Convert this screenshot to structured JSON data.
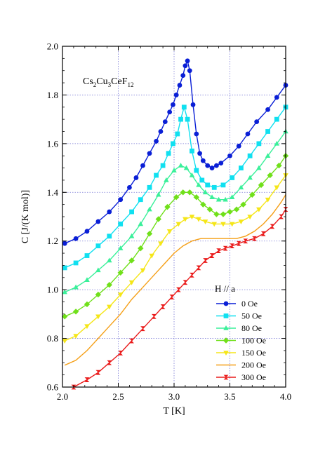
{
  "chart_data": {
    "type": "line",
    "title": "",
    "xlabel": "T [K]",
    "ylabel": "C [J/(K mol)]",
    "xlim": [
      2.0,
      4.0
    ],
    "ylim": [
      0.6,
      2.0
    ],
    "xticks": [
      2.0,
      2.5,
      3.0,
      3.5,
      4.0
    ],
    "xtick_labels": [
      "2.0",
      "2.5",
      "3.0",
      "3.5",
      "4.0"
    ],
    "yticks": [
      0.6,
      0.8,
      1.0,
      1.2,
      1.4,
      1.6,
      1.8,
      2.0
    ],
    "ytick_labels": [
      "0.6",
      "0.8",
      "1.0",
      "1.2",
      "1.4",
      "1.6",
      "1.8",
      "2.0"
    ],
    "grid": true,
    "grid_style": "dotted",
    "legend_position": "lower-right",
    "legend_title": "H // a",
    "annotation": {
      "base1": "Cs",
      "sub1": "2",
      "base2": "Cu",
      "sub2": "3",
      "base3": "CeF",
      "sub3": "12"
    },
    "series": [
      {
        "name": "0 Oe",
        "color": "#0a1fd6",
        "marker": "circle",
        "x": [
          2.02,
          2.12,
          2.22,
          2.32,
          2.42,
          2.52,
          2.6,
          2.66,
          2.72,
          2.78,
          2.84,
          2.88,
          2.92,
          2.96,
          2.99,
          3.02,
          3.05,
          3.08,
          3.1,
          3.12,
          3.14,
          3.17,
          3.2,
          3.23,
          3.26,
          3.3,
          3.34,
          3.38,
          3.42,
          3.5,
          3.58,
          3.66,
          3.74,
          3.84,
          3.92,
          4.0
        ],
        "y": [
          1.19,
          1.21,
          1.24,
          1.28,
          1.32,
          1.37,
          1.42,
          1.46,
          1.51,
          1.56,
          1.61,
          1.65,
          1.69,
          1.73,
          1.76,
          1.8,
          1.84,
          1.88,
          1.92,
          1.94,
          1.9,
          1.76,
          1.64,
          1.56,
          1.53,
          1.51,
          1.5,
          1.51,
          1.52,
          1.55,
          1.59,
          1.64,
          1.69,
          1.74,
          1.79,
          1.84
        ]
      },
      {
        "name": "50 Oe",
        "color": "#10e0f0",
        "marker": "square",
        "x": [
          2.02,
          2.12,
          2.22,
          2.32,
          2.42,
          2.52,
          2.62,
          2.7,
          2.78,
          2.84,
          2.9,
          2.95,
          2.99,
          3.03,
          3.06,
          3.09,
          3.12,
          3.16,
          3.2,
          3.25,
          3.3,
          3.36,
          3.44,
          3.52,
          3.6,
          3.68,
          3.76,
          3.84,
          3.92,
          4.0
        ],
        "y": [
          1.09,
          1.11,
          1.14,
          1.18,
          1.22,
          1.27,
          1.32,
          1.37,
          1.42,
          1.47,
          1.51,
          1.56,
          1.6,
          1.64,
          1.7,
          1.75,
          1.7,
          1.57,
          1.49,
          1.45,
          1.43,
          1.42,
          1.43,
          1.46,
          1.5,
          1.55,
          1.6,
          1.65,
          1.7,
          1.75
        ]
      },
      {
        "name": "80 Oe",
        "color": "#3af09a",
        "marker": "triangle-up",
        "x": [
          2.02,
          2.12,
          2.22,
          2.32,
          2.42,
          2.52,
          2.62,
          2.7,
          2.78,
          2.86,
          2.93,
          3.0,
          3.06,
          3.11,
          3.16,
          3.22,
          3.28,
          3.34,
          3.4,
          3.46,
          3.52,
          3.6,
          3.68,
          3.76,
          3.84,
          3.92,
          4.0
        ],
        "y": [
          0.99,
          1.01,
          1.04,
          1.08,
          1.12,
          1.17,
          1.22,
          1.27,
          1.33,
          1.39,
          1.45,
          1.49,
          1.51,
          1.5,
          1.47,
          1.43,
          1.4,
          1.38,
          1.37,
          1.37,
          1.38,
          1.42,
          1.46,
          1.5,
          1.55,
          1.6,
          1.65
        ]
      },
      {
        "name": "100 Oe",
        "color": "#70e01a",
        "marker": "diamond",
        "x": [
          2.02,
          2.12,
          2.22,
          2.32,
          2.42,
          2.52,
          2.62,
          2.7,
          2.78,
          2.86,
          2.94,
          3.02,
          3.08,
          3.14,
          3.2,
          3.26,
          3.32,
          3.38,
          3.44,
          3.5,
          3.56,
          3.62,
          3.7,
          3.78,
          3.86,
          3.94,
          4.0
        ],
        "y": [
          0.89,
          0.91,
          0.94,
          0.98,
          1.02,
          1.07,
          1.12,
          1.17,
          1.23,
          1.29,
          1.34,
          1.38,
          1.4,
          1.4,
          1.38,
          1.35,
          1.33,
          1.31,
          1.31,
          1.32,
          1.33,
          1.35,
          1.39,
          1.43,
          1.47,
          1.51,
          1.55
        ]
      },
      {
        "name": "150 Oe",
        "color": "#f5e618",
        "marker": "triangle-down",
        "x": [
          2.02,
          2.12,
          2.22,
          2.32,
          2.42,
          2.52,
          2.62,
          2.72,
          2.8,
          2.88,
          2.96,
          3.04,
          3.1,
          3.16,
          3.22,
          3.28,
          3.36,
          3.44,
          3.52,
          3.6,
          3.68,
          3.76,
          3.84,
          3.92,
          4.0
        ],
        "y": [
          0.79,
          0.81,
          0.85,
          0.89,
          0.93,
          0.98,
          1.03,
          1.08,
          1.14,
          1.19,
          1.24,
          1.27,
          1.29,
          1.3,
          1.29,
          1.28,
          1.27,
          1.27,
          1.27,
          1.28,
          1.3,
          1.33,
          1.37,
          1.42,
          1.47
        ]
      },
      {
        "name": "200 Oe",
        "color": "#f5a018",
        "marker": "bowtie",
        "x": [
          2.02,
          2.12,
          2.22,
          2.32,
          2.42,
          2.52,
          2.62,
          2.72,
          2.82,
          2.92,
          3.0,
          3.08,
          3.16,
          3.24,
          3.32,
          3.4,
          3.48,
          3.56,
          3.64,
          3.72,
          3.8,
          3.88,
          3.96,
          4.0
        ],
        "y": [
          0.69,
          0.71,
          0.75,
          0.8,
          0.85,
          0.9,
          0.96,
          1.01,
          1.06,
          1.11,
          1.15,
          1.18,
          1.2,
          1.21,
          1.21,
          1.21,
          1.21,
          1.21,
          1.22,
          1.24,
          1.27,
          1.31,
          1.36,
          1.39
        ]
      },
      {
        "name": "300 Oe",
        "color": "#ea1c1c",
        "marker": "hourglass",
        "x": [
          2.1,
          2.22,
          2.32,
          2.42,
          2.52,
          2.62,
          2.72,
          2.82,
          2.9,
          2.98,
          3.04,
          3.1,
          3.16,
          3.22,
          3.28,
          3.34,
          3.4,
          3.46,
          3.52,
          3.58,
          3.64,
          3.72,
          3.8,
          3.88,
          3.96,
          4.0
        ],
        "y": [
          0.6,
          0.63,
          0.66,
          0.7,
          0.74,
          0.79,
          0.84,
          0.89,
          0.93,
          0.97,
          1.0,
          1.03,
          1.06,
          1.09,
          1.12,
          1.14,
          1.16,
          1.17,
          1.18,
          1.19,
          1.2,
          1.21,
          1.23,
          1.26,
          1.3,
          1.33
        ]
      }
    ]
  }
}
